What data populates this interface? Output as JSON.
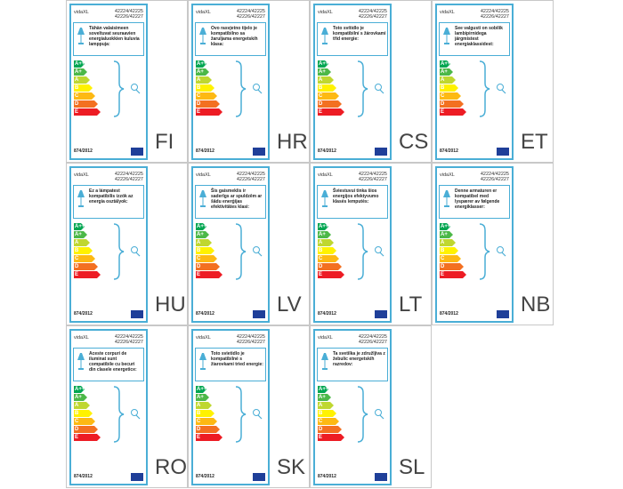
{
  "brand": "vidaXL",
  "codes": [
    "42224/42225",
    "42226/42227"
  ],
  "classes": [
    "A++",
    "A+",
    "A",
    "B",
    "C",
    "D",
    "E"
  ],
  "regulation": "874/2012",
  "labels": [
    {
      "lang": "FI",
      "text": "Tähän valaisimeen soveltuvat seuraavien energialuokkien kuluvia lamppuja:"
    },
    {
      "lang": "HR",
      "text": "Ovo rasvjetno tijelo je kompatibilno sa žaruljama energetskih klasa:"
    },
    {
      "lang": "CS",
      "text": "Toto svítidlo je kompatibilní s žárovkami třid energie:"
    },
    {
      "lang": "ET",
      "text": "See valgusti on sobilik lambipirnidega järgmistest energiaklassidest:"
    },
    {
      "lang": "HU",
      "text": "Ez a lámpatest kompatibilis izzók az energia osztályok:"
    },
    {
      "lang": "LV",
      "text": "Šis gaismeklis ir saderīgs ar spuldzēm ar šādu enerģijas efektivitātes klasi:"
    },
    {
      "lang": "LT",
      "text": "Šviestuvui tinka šios energijos efektyvumo klasės lemputės:"
    },
    {
      "lang": "NB",
      "text": "Denne armaturen er kompatibel med lyspærer av følgende energiklasser:"
    },
    {
      "lang": "RO",
      "text": "Aceste corpuri de iluminat sunt compatibile cu becuri din clasele energetice:"
    },
    {
      "lang": "SK",
      "text": "Toto svietidlo je kompatibilné s žiarovkami tried energie:"
    },
    {
      "lang": "SL",
      "text": "Ta svetilka je združljiva z žebulic energetskih razredov:"
    }
  ]
}
